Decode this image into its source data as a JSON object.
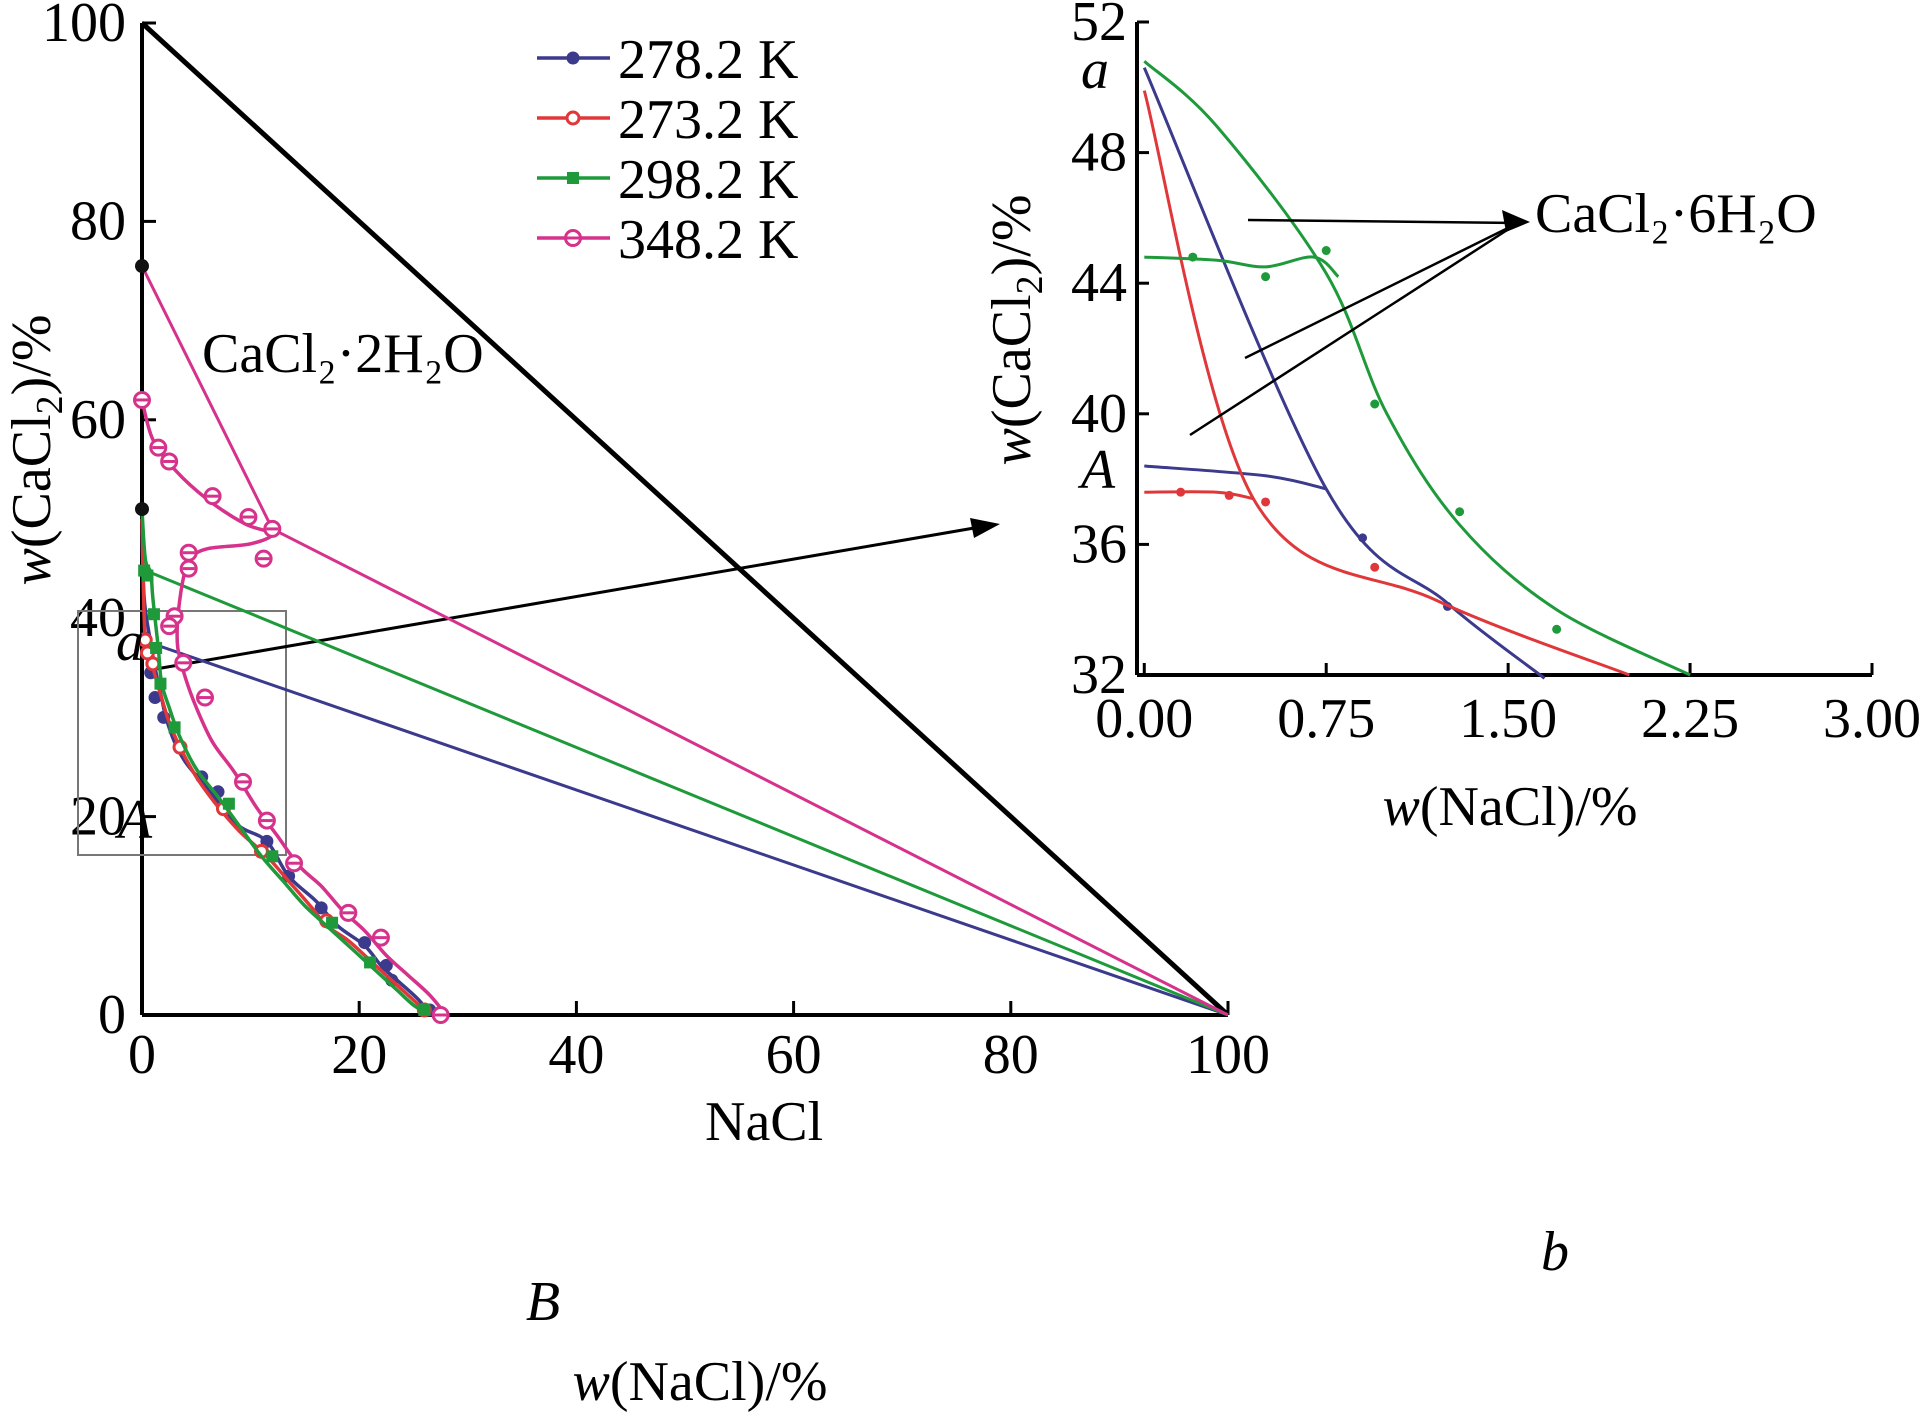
{
  "chart_data": [
    {
      "type": "line",
      "xlabel": {
        "var": "w",
        "text": "(NaCl)/%"
      },
      "ylabel": {
        "var": "w",
        "text": "(CaCl",
        "sub": "2",
        "tail": ")/%"
      },
      "xlim": [
        0,
        100
      ],
      "ylim": [
        0,
        100
      ],
      "xticks": [
        "0",
        "20",
        "40",
        "60",
        "80",
        "100"
      ],
      "yticks": [
        "0",
        "20",
        "40",
        "60",
        "80",
        "100"
      ],
      "legend": {
        "placement": "top-center",
        "entries": [
          "278.2 K",
          "273.2 K",
          "298.2 K",
          "348.2 K"
        ]
      },
      "annotations": {
        "region_top": "CaCl₂·2H₂O",
        "region_bottom": "NaCl",
        "point_a": "a",
        "point_A": "A",
        "point_B": "B",
        "point_b": "b"
      },
      "series": [
        {
          "name": "278.2 K",
          "color": "#3b3a8c",
          "marker": "filled-circle",
          "points": [
            [
              0,
              49
            ],
            [
              0.2,
              42
            ],
            [
              0.8,
              37.5
            ],
            [
              1.2,
              35
            ],
            [
              1.8,
              32
            ],
            [
              2.2,
              30
            ],
            [
              3,
              27.5
            ],
            [
              4,
              25.5
            ],
            [
              5.5,
              23.5
            ],
            [
              7,
              21.5
            ],
            [
              9,
              19
            ],
            [
              11.5,
              17.5
            ],
            [
              13.5,
              14
            ],
            [
              16,
              11.5
            ],
            [
              18,
              9
            ],
            [
              20.5,
              7
            ],
            [
              22,
              5
            ],
            [
              23.5,
              3.5
            ],
            [
              25.5,
              1.5
            ],
            [
              26.5,
              0
            ]
          ],
          "points_marked": [
            [
              0,
              51
            ],
            [
              0.3,
              38
            ],
            [
              0.8,
              34.5
            ],
            [
              1.2,
              32
            ],
            [
              2,
              30
            ],
            [
              3.5,
              27
            ],
            [
              5.5,
              24
            ],
            [
              7,
              22.5
            ],
            [
              11.5,
              17.5
            ],
            [
              13.5,
              14
            ],
            [
              16.5,
              10.8
            ],
            [
              20.5,
              7.3
            ],
            [
              22.5,
              5
            ],
            [
              23,
              3.5
            ],
            [
              26.5,
              0.5
            ]
          ],
          "tieline": [
            [
              0.8,
              37.5
            ],
            [
              100,
              0
            ]
          ]
        },
        {
          "name": "273.2 K",
          "color": "#e0383a",
          "marker": "open-circle",
          "points": [
            [
              0,
              50
            ],
            [
              0.2,
              40
            ],
            [
              0.4,
              37.5
            ],
            [
              1,
              35
            ],
            [
              1.8,
              32
            ],
            [
              2.5,
              29.5
            ],
            [
              3.5,
              27
            ],
            [
              5,
              24
            ],
            [
              7,
              21
            ],
            [
              9,
              18.5
            ],
            [
              11.5,
              16
            ],
            [
              13.5,
              13.5
            ],
            [
              15.5,
              11
            ],
            [
              17,
              9
            ],
            [
              19,
              7.5
            ],
            [
              21,
              5.5
            ],
            [
              23,
              3.5
            ],
            [
              25,
              1.5
            ],
            [
              26.5,
              0
            ]
          ],
          "points_marked": [
            [
              0.3,
              37.8
            ],
            [
              0.5,
              36.5
            ],
            [
              1,
              35.4
            ],
            [
              3.5,
              27
            ],
            [
              7.5,
              20.8
            ],
            [
              11,
              16.5
            ],
            [
              17,
              9.5
            ],
            [
              26,
              0.5
            ]
          ]
        },
        {
          "name": "298.2 K",
          "color": "#1e9a3b",
          "marker": "filled-square",
          "points": [
            [
              0,
              51
            ],
            [
              0.3,
              46
            ],
            [
              0.8,
              44.6
            ],
            [
              1,
              42
            ],
            [
              1.5,
              37
            ],
            [
              1.8,
              33.5
            ],
            [
              2.5,
              31
            ],
            [
              3.5,
              28
            ],
            [
              5,
              24.8
            ],
            [
              7,
              22
            ],
            [
              9,
              19
            ],
            [
              11,
              16
            ],
            [
              13,
              13.5
            ],
            [
              15,
              11
            ],
            [
              17.5,
              8.5
            ],
            [
              19.5,
              6.5
            ],
            [
              21.5,
              4.5
            ],
            [
              23.5,
              2.5
            ],
            [
              25,
              1
            ],
            [
              26.5,
              0
            ]
          ],
          "points_marked": [
            [
              0.2,
              44.8
            ],
            [
              0.5,
              44.3
            ],
            [
              1.1,
              40.4
            ],
            [
              1.3,
              37
            ],
            [
              1.7,
              33.4
            ],
            [
              3,
              29
            ],
            [
              8,
              21.3
            ],
            [
              12,
              16
            ],
            [
              17.5,
              9.3
            ],
            [
              21,
              5.3
            ],
            [
              26,
              0.5
            ]
          ],
          "tieline": [
            [
              0.8,
              44.6
            ],
            [
              100,
              0
            ]
          ]
        },
        {
          "name": "348.2 K",
          "color": "#d6328c",
          "marker": "hatched-circle",
          "points": [
            [
              0,
              62
            ],
            [
              1,
              58
            ],
            [
              3,
              55
            ],
            [
              6,
              52
            ],
            [
              9.5,
              49.5
            ],
            [
              12,
              48.5
            ],
            [
              10,
              47.5
            ],
            [
              6,
              47
            ],
            [
              4.5,
              46
            ],
            [
              3.8,
              44
            ],
            [
              3.3,
              40
            ],
            [
              3.3,
              37
            ],
            [
              4,
              34
            ],
            [
              5,
              31
            ],
            [
              6.5,
              27.5
            ],
            [
              8.5,
              24.5
            ],
            [
              10.5,
              21
            ],
            [
              12.5,
              18
            ],
            [
              14.5,
              15
            ],
            [
              16.5,
              13
            ],
            [
              18.5,
              10.5
            ],
            [
              20.5,
              8.5
            ],
            [
              22.5,
              6
            ],
            [
              24.5,
              4
            ],
            [
              26.5,
              2
            ],
            [
              28,
              0
            ]
          ],
          "points_marked": [
            [
              0,
              62
            ],
            [
              1.5,
              57.2
            ],
            [
              2.5,
              55.8
            ],
            [
              6.5,
              52.3
            ],
            [
              9.8,
              50.2
            ],
            [
              12,
              49
            ],
            [
              11.2,
              46
            ],
            [
              4.3,
              46.6
            ],
            [
              4.3,
              45
            ],
            [
              3,
              40.2
            ],
            [
              2.5,
              39.2
            ],
            [
              3.8,
              35.5
            ],
            [
              5.8,
              32
            ],
            [
              9.3,
              23.5
            ],
            [
              11.5,
              19.6
            ],
            [
              14,
              15.3
            ],
            [
              19,
              10.3
            ],
            [
              22,
              7.8
            ],
            [
              27.5,
              0
            ]
          ],
          "tieline": [
            [
              0,
              75.5
            ],
            [
              12,
              49
            ],
            [
              100,
              0
            ]
          ]
        }
      ]
    },
    {
      "type": "line",
      "inset": true,
      "xlabel": {
        "var": "w",
        "text": "(NaCl)/%"
      },
      "ylabel": {
        "var": "w",
        "text": "(CaCl",
        "sub": "2",
        "tail": ")/%"
      },
      "xlim": [
        -0.03,
        3.0
      ],
      "ylim": [
        32,
        52
      ],
      "xticks": [
        "0.00",
        "0.75",
        "1.50",
        "2.25",
        "3.00"
      ],
      "yticks": [
        "32",
        "36",
        "40",
        "44",
        "48",
        "52"
      ],
      "annotations": {
        "label": "CaCl₂·6H₂O",
        "point_a": "a",
        "point_A": "A"
      },
      "series": [
        {
          "name": "278.2 K",
          "color": "#3b3a8c",
          "points": [
            [
              0,
              50.6
            ],
            [
              0.75,
              37.7
            ],
            [
              1.25,
              34.2
            ],
            [
              1.65,
              31.9
            ]
          ],
          "branch": [
            [
              0,
              38.4
            ],
            [
              0.5,
              38.1
            ],
            [
              0.75,
              37.7
            ]
          ],
          "points_marked": [
            [
              0.9,
              36.2
            ],
            [
              1.25,
              34.1
            ]
          ]
        },
        {
          "name": "273.2 K",
          "color": "#e0383a",
          "points": [
            [
              0,
              49.9
            ],
            [
              0.45,
              37.4
            ],
            [
              1.2,
              34.3
            ],
            [
              2.0,
              32
            ]
          ],
          "branch": [
            [
              0,
              37.6
            ],
            [
              0.3,
              37.6
            ],
            [
              0.45,
              37.4
            ]
          ],
          "points_marked": [
            [
              0.15,
              37.6
            ],
            [
              0.35,
              37.5
            ],
            [
              0.5,
              37.3
            ],
            [
              0.95,
              35.3
            ]
          ]
        },
        {
          "name": "298.2 K",
          "color": "#1e9a3b",
          "points": [
            [
              0,
              50.8
            ],
            [
              0.3,
              48.8
            ],
            [
              0.75,
              44.3
            ],
            [
              1,
              40
            ],
            [
              1.3,
              36.6
            ],
            [
              1.7,
              34
            ],
            [
              2.25,
              32
            ]
          ],
          "branch": [
            [
              0,
              44.8
            ],
            [
              0.3,
              44.7
            ],
            [
              0.5,
              44.5
            ],
            [
              0.7,
              44.8
            ],
            [
              0.8,
              44.2
            ]
          ],
          "points_marked": [
            [
              0.2,
              44.8
            ],
            [
              0.5,
              44.2
            ],
            [
              0.75,
              45
            ],
            [
              0.95,
              40.3
            ],
            [
              1.3,
              37
            ],
            [
              1.7,
              33.4
            ]
          ]
        }
      ]
    }
  ]
}
